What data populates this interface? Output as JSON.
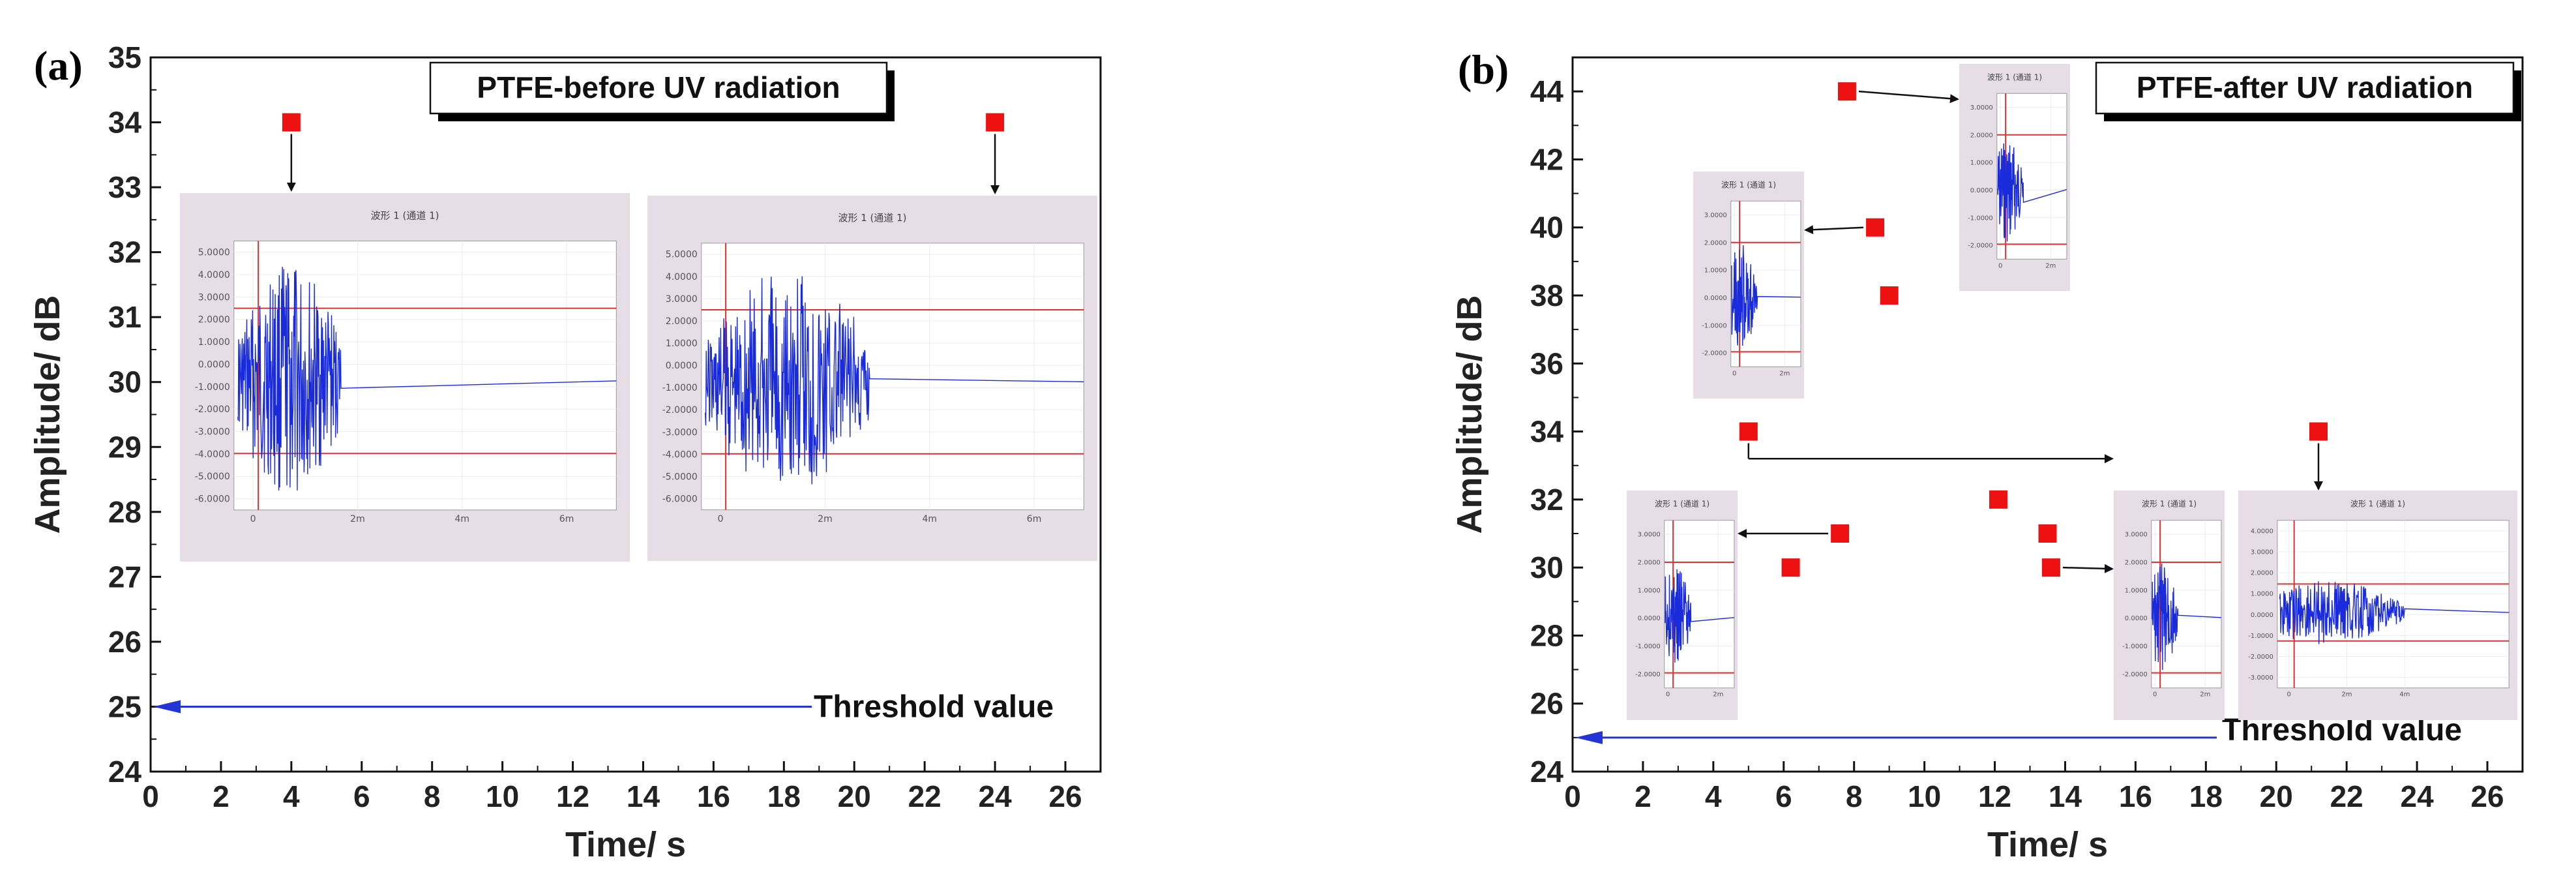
{
  "chart_data": [
    {
      "type": "scatter",
      "panel_label": "(a)",
      "legend": "PTFE-before UV radiation",
      "xlabel": "Time/ s",
      "ylabel": "Amplitude/ dB",
      "xlim": [
        0,
        27
      ],
      "ylim": [
        24,
        35
      ],
      "xticks": [
        "0",
        "2",
        "4",
        "6",
        "8",
        "10",
        "12",
        "14",
        "16",
        "18",
        "20",
        "22",
        "24",
        "26"
      ],
      "yticks": [
        "24",
        "25",
        "26",
        "27",
        "28",
        "29",
        "30",
        "31",
        "32",
        "33",
        "34",
        "35"
      ],
      "points": [
        {
          "x": 4.0,
          "y": 34
        },
        {
          "x": 24.0,
          "y": 34
        }
      ],
      "threshold": {
        "y": 25,
        "label": "Threshold value"
      },
      "marker_color": "#ee1111",
      "insets": [
        {
          "title": "波形 1 (通道 1)",
          "yticks": [
            "5.0000",
            "4.0000",
            "3.0000",
            "2.0000",
            "1.0000",
            "0.0000",
            "-1.0000",
            "-2.0000",
            "-3.0000",
            "-4.0000",
            "-5.0000",
            "-6.0000"
          ],
          "xticks": [
            "0",
            "2m",
            "4m",
            "6m"
          ]
        },
        {
          "title": "波形 1 (通道 1)",
          "yticks": [
            "5.0000",
            "4.0000",
            "3.0000",
            "2.0000",
            "1.0000",
            "0.0000",
            "-1.0000",
            "-2.0000",
            "-3.0000",
            "-4.0000",
            "-5.0000",
            "-6.0000"
          ],
          "xticks": [
            "0",
            "2m",
            "4m",
            "6m"
          ]
        }
      ]
    },
    {
      "type": "scatter",
      "panel_label": "(b)",
      "legend": "PTFE-after UV radiation",
      "xlabel": "Time/ s",
      "ylabel": "Amplitude/ dB",
      "xlim": [
        0,
        27
      ],
      "ylim": [
        24,
        45
      ],
      "xticks": [
        "0",
        "2",
        "4",
        "6",
        "8",
        "10",
        "12",
        "14",
        "16",
        "18",
        "20",
        "22",
        "24",
        "26"
      ],
      "yticks": [
        "24",
        "26",
        "28",
        "30",
        "32",
        "34",
        "36",
        "38",
        "40",
        "42",
        "44"
      ],
      "points": [
        {
          "x": 7.8,
          "y": 44
        },
        {
          "x": 8.6,
          "y": 40
        },
        {
          "x": 9.0,
          "y": 38
        },
        {
          "x": 5.0,
          "y": 34
        },
        {
          "x": 21.2,
          "y": 34
        },
        {
          "x": 12.1,
          "y": 32
        },
        {
          "x": 7.6,
          "y": 31
        },
        {
          "x": 13.5,
          "y": 31
        },
        {
          "x": 6.2,
          "y": 30
        },
        {
          "x": 13.6,
          "y": 30
        }
      ],
      "threshold": {
        "y": 25,
        "label": "Threshold value"
      },
      "marker_color": "#ee1111",
      "insets": [
        {
          "title": "波形 1 (通道 1)",
          "yticks": [
            "3.0000",
            "2.0000",
            "1.0000",
            "0.0000",
            "-1.0000",
            "-2.0000"
          ],
          "xticks": [
            "0",
            "2m"
          ]
        },
        {
          "title": "波形 1 (通道 1)",
          "yticks": [
            "3.0000",
            "2.0000",
            "1.0000",
            "0.0000",
            "-1.0000",
            "-2.0000"
          ],
          "xticks": [
            "0",
            "2m"
          ]
        },
        {
          "title": "波形 1 (通道 1)",
          "yticks": [
            "3.0000",
            "2.0000",
            "1.0000",
            "0.0000",
            "-1.0000",
            "-2.0000"
          ],
          "xticks": [
            "0",
            "2m"
          ]
        },
        {
          "title": "波形 1 (通道 1)",
          "yticks": [
            "3.0000",
            "2.0000",
            "1.0000",
            "0.0000",
            "-1.0000",
            "-2.0000"
          ],
          "xticks": [
            "0",
            "2m"
          ]
        },
        {
          "title": "波形 1 (通道 1)",
          "yticks": [
            "4.0000",
            "3.0000",
            "2.0000",
            "1.0000",
            "0.0000",
            "-1.0000",
            "-2.0000",
            "-3.0000"
          ],
          "xticks": [
            "0",
            "2m",
            "4m"
          ]
        }
      ]
    }
  ]
}
